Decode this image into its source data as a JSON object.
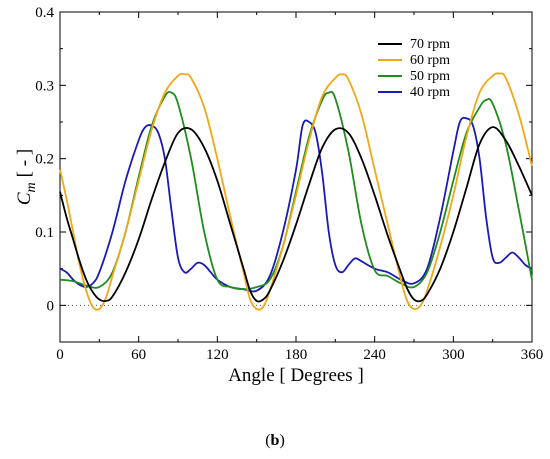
{
  "caption": {
    "prefix": "(",
    "letter": "b",
    "suffix": ")"
  },
  "colors": {
    "70 rpm": "#000000",
    "60 rpm": "#f0a818",
    "50 rpm": "#1e8c1e",
    "40 rpm": "#1a1ab4",
    "zero_line": "#555555"
  },
  "chart_data": {
    "type": "line",
    "title": "",
    "xlabel": "Angle [ Degrees ]",
    "ylabel_main": "C",
    "ylabel_sub": "m",
    "ylabel_unit": "[ - ]",
    "xlim": [
      0,
      360
    ],
    "ylim": [
      -0.05,
      0.4
    ],
    "xticks": [
      0,
      60,
      120,
      180,
      240,
      300,
      360
    ],
    "yticks": [
      0,
      0.1,
      0.2,
      0.3,
      0.4
    ],
    "ytick_labels": [
      "0",
      "0.1",
      "0.2",
      "0.3",
      "0.4"
    ],
    "grid": false,
    "legend_position": "top-right",
    "reference_line": {
      "y": 0,
      "style": "dotted"
    },
    "series": [
      {
        "name": "70 rpm",
        "x": [
          0,
          5,
          10,
          15,
          20,
          25,
          30,
          35,
          40,
          50,
          60,
          70,
          80,
          90,
          100,
          110,
          120,
          130,
          140,
          145,
          150,
          155,
          160,
          170,
          180,
          190,
          200,
          210,
          220,
          230,
          240,
          250,
          260,
          265,
          270,
          275,
          280,
          290,
          300,
          310,
          320,
          330,
          340,
          350,
          360
        ],
        "y": [
          0.155,
          0.12,
          0.09,
          0.06,
          0.035,
          0.018,
          0.008,
          0.006,
          0.012,
          0.045,
          0.09,
          0.145,
          0.195,
          0.235,
          0.24,
          0.215,
          0.17,
          0.11,
          0.05,
          0.02,
          0.006,
          0.008,
          0.02,
          0.06,
          0.11,
          0.165,
          0.215,
          0.24,
          0.235,
          0.2,
          0.15,
          0.095,
          0.045,
          0.022,
          0.008,
          0.006,
          0.015,
          0.05,
          0.1,
          0.16,
          0.22,
          0.243,
          0.225,
          0.19,
          0.15
        ]
      },
      {
        "name": "60 rpm",
        "x": [
          0,
          5,
          10,
          15,
          20,
          25,
          30,
          35,
          40,
          50,
          60,
          70,
          80,
          90,
          95,
          100,
          110,
          120,
          130,
          140,
          145,
          150,
          155,
          160,
          170,
          180,
          190,
          200,
          210,
          215,
          220,
          230,
          240,
          250,
          260,
          265,
          270,
          275,
          280,
          290,
          300,
          310,
          320,
          330,
          335,
          340,
          350,
          360
        ],
        "y": [
          0.185,
          0.145,
          0.1,
          0.055,
          0.02,
          -0.002,
          -0.005,
          0.01,
          0.04,
          0.1,
          0.17,
          0.24,
          0.29,
          0.313,
          0.315,
          0.31,
          0.27,
          0.2,
          0.12,
          0.045,
          0.008,
          -0.005,
          -0.002,
          0.02,
          0.08,
          0.15,
          0.225,
          0.285,
          0.31,
          0.315,
          0.308,
          0.26,
          0.185,
          0.11,
          0.035,
          0.005,
          -0.005,
          0.0,
          0.02,
          0.08,
          0.15,
          0.23,
          0.29,
          0.313,
          0.316,
          0.31,
          0.26,
          0.19
        ]
      },
      {
        "name": "50 rpm",
        "x": [
          0,
          10,
          20,
          30,
          40,
          50,
          60,
          70,
          80,
          85,
          90,
          100,
          110,
          120,
          130,
          140,
          150,
          160,
          170,
          180,
          190,
          200,
          205,
          210,
          220,
          230,
          240,
          250,
          260,
          270,
          280,
          290,
          300,
          310,
          320,
          325,
          330,
          340,
          350,
          360
        ],
        "y": [
          0.035,
          0.033,
          0.027,
          0.025,
          0.045,
          0.1,
          0.175,
          0.245,
          0.285,
          0.29,
          0.275,
          0.2,
          0.1,
          0.035,
          0.025,
          0.022,
          0.025,
          0.035,
          0.08,
          0.155,
          0.23,
          0.28,
          0.29,
          0.282,
          0.21,
          0.11,
          0.048,
          0.04,
          0.03,
          0.025,
          0.045,
          0.1,
          0.17,
          0.235,
          0.27,
          0.28,
          0.275,
          0.22,
          0.13,
          0.035
        ]
      },
      {
        "name": "40 rpm",
        "x": [
          0,
          5,
          10,
          15,
          20,
          25,
          30,
          40,
          50,
          60,
          65,
          70,
          75,
          80,
          85,
          90,
          95,
          100,
          105,
          110,
          115,
          120,
          130,
          140,
          150,
          160,
          170,
          180,
          185,
          190,
          195,
          200,
          205,
          210,
          215,
          220,
          225,
          230,
          240,
          250,
          260,
          270,
          280,
          290,
          300,
          305,
          310,
          315,
          320,
          325,
          330,
          335,
          340,
          345,
          350,
          355,
          360
        ],
        "y": [
          0.05,
          0.045,
          0.035,
          0.028,
          0.025,
          0.03,
          0.045,
          0.1,
          0.17,
          0.225,
          0.243,
          0.245,
          0.235,
          0.2,
          0.13,
          0.065,
          0.045,
          0.05,
          0.058,
          0.055,
          0.045,
          0.035,
          0.025,
          0.022,
          0.02,
          0.04,
          0.1,
          0.185,
          0.245,
          0.25,
          0.235,
          0.18,
          0.1,
          0.055,
          0.045,
          0.055,
          0.064,
          0.06,
          0.05,
          0.045,
          0.035,
          0.03,
          0.05,
          0.12,
          0.21,
          0.25,
          0.255,
          0.245,
          0.2,
          0.12,
          0.065,
          0.058,
          0.065,
          0.072,
          0.065,
          0.055,
          0.05
        ]
      }
    ]
  }
}
